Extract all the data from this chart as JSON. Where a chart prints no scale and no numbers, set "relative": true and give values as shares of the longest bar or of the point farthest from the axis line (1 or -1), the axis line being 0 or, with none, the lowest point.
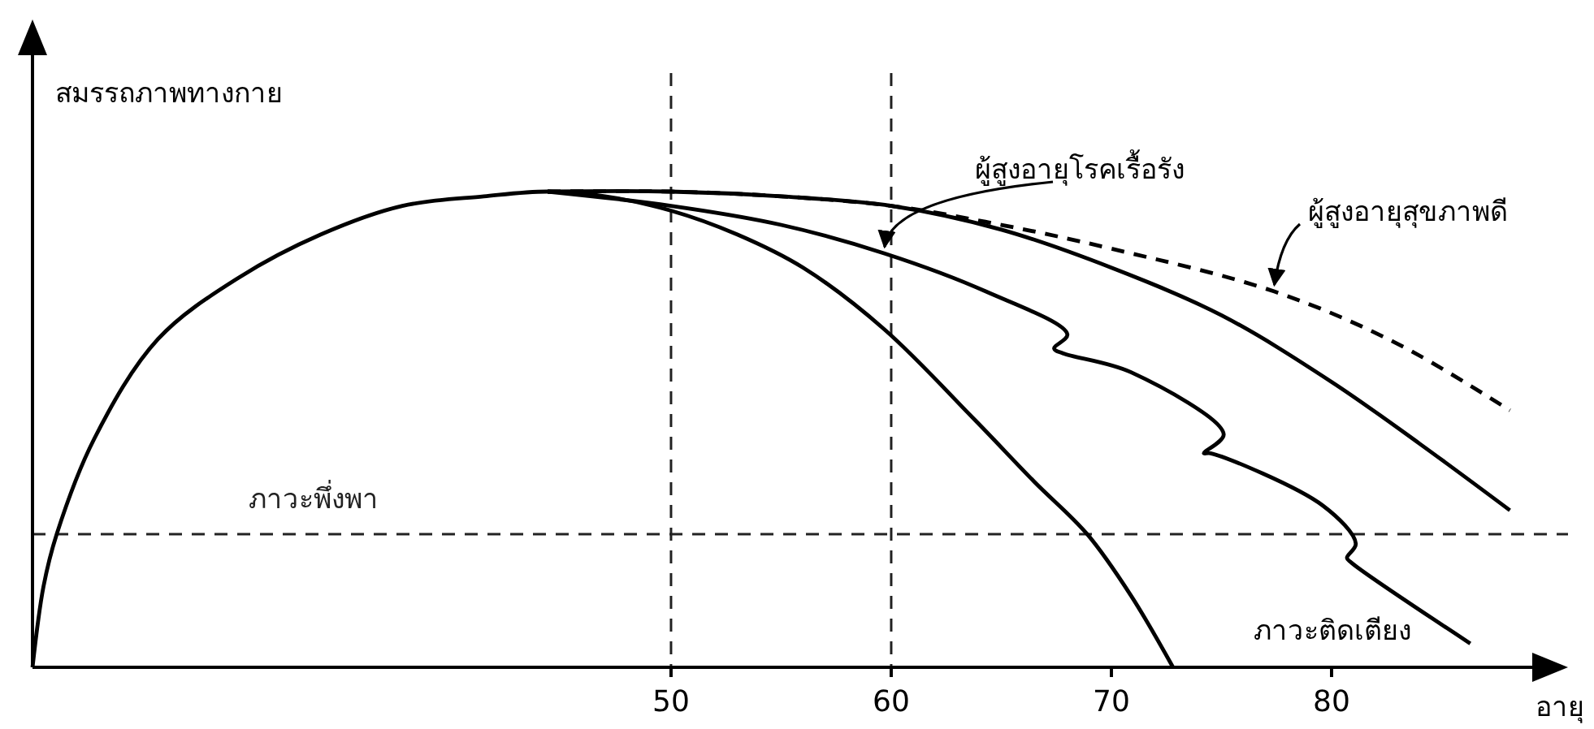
{
  "chart_data": {
    "type": "line",
    "relative": true,
    "xlabel": "อายุ",
    "ylabel": "สมรรถภาพทางกาย",
    "xlim": [
      21,
      90
    ],
    "xticks": [
      50,
      60,
      70,
      80
    ],
    "grid": false,
    "legend": false,
    "marker": "none",
    "series": [
      {
        "color": "#000000",
        "line_style": "solid",
        "x": [
          21,
          21.5,
          22.1,
          23.8,
          26.7,
          30.4,
          34.1,
          37.8,
          41.5,
          44.4,
          47,
          50,
          53,
          56,
          59.7,
          63.8,
          66.5,
          68.9,
          70.9,
          72.8
        ],
        "values": [
          0,
          0.17,
          0.28,
          0.48,
          0.69,
          0.82,
          0.91,
          0.97,
          0.99,
          1,
          0.99,
          0.96,
          0.91,
          0.84,
          0.71,
          0.52,
          0.39,
          0.28,
          0.15,
          0
        ]
      },
      {
        "name": "ผู้สูงอายุโรคเรื้อรัง",
        "color": "#000000",
        "line_style": "solid",
        "x": [
          44.4,
          50,
          55,
          59.7,
          64.3,
          68,
          67.4,
          67.8,
          70.9,
          75.1,
          74.2,
          74.5,
          79.6,
          81.1,
          80.7,
          80.9,
          86.3
        ],
        "values": [
          1,
          0.97,
          0.93,
          0.87,
          0.79,
          0.7,
          0.67,
          0.66,
          0.62,
          0.49,
          0.45,
          0.45,
          0.34,
          0.26,
          0.23,
          0.22,
          0.05
        ]
      },
      {
        "color": "#000000",
        "line_style": "solid",
        "x": [
          44.4,
          50,
          55,
          60,
          65,
          70,
          75,
          80,
          84,
          88.1
        ],
        "values": [
          1,
          1,
          0.99,
          0.97,
          0.92,
          0.84,
          0.74,
          0.6,
          0.47,
          0.33
        ]
      },
      {
        "name": "ผู้สูงอายุสุขภาพดี",
        "color": "#000000",
        "line_style": "dashed",
        "x": [
          44.4,
          50,
          55,
          60,
          65,
          70,
          77.4,
          83,
          88.1
        ],
        "values": [
          1,
          1,
          0.99,
          0.97,
          0.93,
          0.88,
          0.79,
          0.68,
          0.54
        ]
      }
    ],
    "ref_lines": [
      {
        "axis": "x",
        "value": 50,
        "line_style": "dashed"
      },
      {
        "axis": "x",
        "value": 60,
        "line_style": "dashed"
      },
      {
        "axis": "y",
        "value": 0.28,
        "label": "ภาวะพึ่งพา",
        "line_style": "dashed"
      }
    ],
    "annotations": [
      "ภาวะติดเตียง"
    ]
  }
}
